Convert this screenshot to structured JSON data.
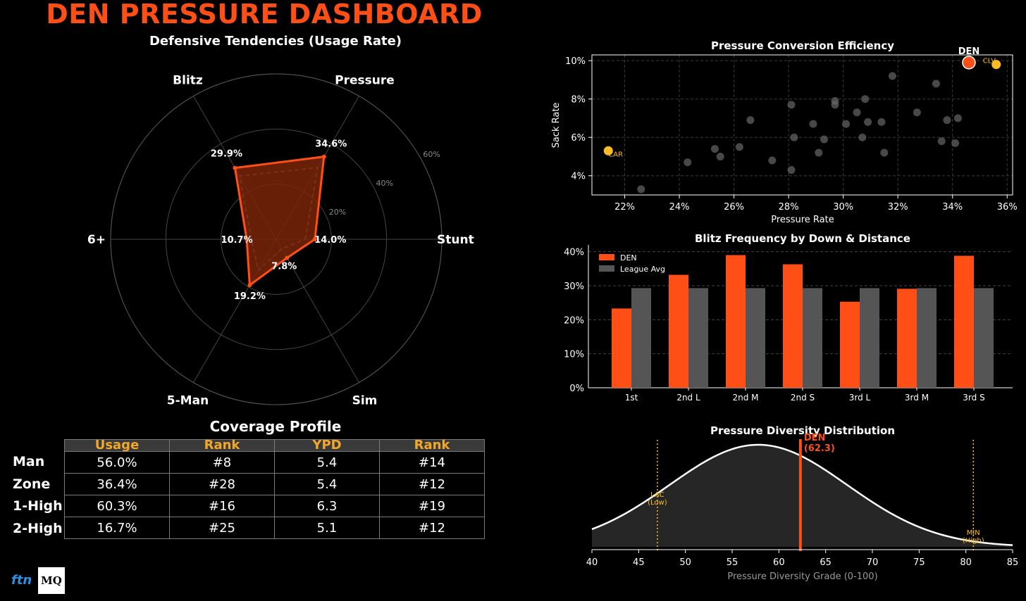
{
  "header": {
    "title": "DEN PRESSURE DASHBOARD"
  },
  "colors": {
    "den": "#ff4f16",
    "league": "#555555",
    "highlight": "#fbbc24",
    "background": "#000000"
  },
  "radar": {
    "title": "Defensive Tendencies (Usage Rate)",
    "axes": [
      "Stunt",
      "Pressure",
      "Blitz",
      "6+",
      "5-Man",
      "Sim"
    ],
    "den_values": [
      14.0,
      34.6,
      29.9,
      10.7,
      19.2,
      7.8
    ],
    "value_labels": [
      "14.0%",
      "34.6%",
      "29.9%",
      "10.7%",
      "19.2%",
      "7.8%"
    ],
    "league_values": [
      10.5,
      30.0,
      26.5,
      9.0,
      13.0,
      4.0
    ],
    "rings": [
      20,
      40,
      60
    ],
    "ring_labels": [
      "20%",
      "40%",
      "60%"
    ],
    "rmax": 60
  },
  "coverage": {
    "title": "Coverage Profile",
    "headers": [
      "Usage",
      "Rank",
      "YPD",
      "Rank"
    ],
    "rows": [
      {
        "label": "Man",
        "usage": "56.0%",
        "rank": "#8",
        "ypd": "5.4",
        "ypd_rank": "#14"
      },
      {
        "label": "Zone",
        "usage": "36.4%",
        "rank": "#28",
        "ypd": "5.4",
        "ypd_rank": "#12"
      },
      {
        "label": "1-High",
        "usage": "60.3%",
        "rank": "#16",
        "ypd": "6.3",
        "ypd_rank": "#19"
      },
      {
        "label": "2-High",
        "usage": "16.7%",
        "rank": "#25",
        "ypd": "5.1",
        "ypd_rank": "#12"
      }
    ]
  },
  "logos": {
    "ftn": "ftn",
    "mq": "MQ"
  },
  "chart_data": [
    {
      "type": "scatter",
      "title": "Pressure Conversion Efficiency",
      "xlabel": "Pressure Rate",
      "ylabel": "Sack Rate",
      "xlim": [
        20.8,
        36.2
      ],
      "ylim": [
        3.0,
        10.3
      ],
      "xticks": [
        22,
        24,
        26,
        28,
        30,
        32,
        34,
        36
      ],
      "xtick_labels": [
        "22%",
        "24%",
        "26%",
        "28%",
        "30%",
        "32%",
        "34%",
        "36%"
      ],
      "yticks": [
        4,
        6,
        8,
        10
      ],
      "ytick_labels": [
        "4%",
        "6%",
        "8%",
        "10%"
      ],
      "grid": true,
      "teams": [
        {
          "x": 22.6,
          "y": 3.3
        },
        {
          "x": 24.3,
          "y": 4.7
        },
        {
          "x": 25.3,
          "y": 5.4
        },
        {
          "x": 25.5,
          "y": 5.0
        },
        {
          "x": 26.2,
          "y": 5.5
        },
        {
          "x": 26.6,
          "y": 6.9
        },
        {
          "x": 27.4,
          "y": 4.8
        },
        {
          "x": 28.1,
          "y": 4.3
        },
        {
          "x": 28.1,
          "y": 7.7
        },
        {
          "x": 28.2,
          "y": 6.0
        },
        {
          "x": 28.9,
          "y": 6.7
        },
        {
          "x": 29.1,
          "y": 5.2
        },
        {
          "x": 29.3,
          "y": 5.9
        },
        {
          "x": 29.7,
          "y": 7.7
        },
        {
          "x": 29.7,
          "y": 7.9
        },
        {
          "x": 30.1,
          "y": 6.7
        },
        {
          "x": 30.5,
          "y": 7.3
        },
        {
          "x": 30.7,
          "y": 6.0
        },
        {
          "x": 30.8,
          "y": 8.0
        },
        {
          "x": 30.9,
          "y": 6.8
        },
        {
          "x": 31.4,
          "y": 6.8
        },
        {
          "x": 31.5,
          "y": 5.2
        },
        {
          "x": 31.8,
          "y": 9.2
        },
        {
          "x": 32.7,
          "y": 7.3
        },
        {
          "x": 33.4,
          "y": 8.8
        },
        {
          "x": 33.6,
          "y": 5.8
        },
        {
          "x": 33.8,
          "y": 6.9
        },
        {
          "x": 34.1,
          "y": 5.7
        },
        {
          "x": 34.2,
          "y": 7.0
        }
      ],
      "highlighted": [
        {
          "label": "DEN",
          "x": 34.6,
          "y": 9.9
        },
        {
          "label": "CLV",
          "x": 35.6,
          "y": 9.8
        },
        {
          "label": "CAR",
          "x": 21.4,
          "y": 5.3
        }
      ]
    },
    {
      "type": "bar",
      "title": "Blitz Frequency by Down & Distance",
      "categories": [
        "1st",
        "2nd L",
        "2nd M",
        "2nd S",
        "3rd L",
        "3rd M",
        "3rd S"
      ],
      "series": [
        {
          "name": "DEN",
          "values": [
            23.3,
            33.2,
            39.0,
            36.3,
            25.3,
            29.1,
            38.8
          ]
        },
        {
          "name": "League Avg",
          "values": [
            29.3,
            29.3,
            29.3,
            29.3,
            29.3,
            29.3,
            29.3
          ]
        }
      ],
      "ylim": [
        0,
        42
      ],
      "yticks": [
        0,
        10,
        20,
        30,
        40
      ],
      "ytick_labels": [
        "0%",
        "10%",
        "20%",
        "30%",
        "40%"
      ],
      "legend": "top-left",
      "grid": true
    },
    {
      "type": "area",
      "title": "Pressure Diversity Distribution",
      "xlabel": "Pressure Diversity Grade (0-100)",
      "xlim": [
        40,
        85
      ],
      "xticks": [
        40,
        45,
        50,
        55,
        60,
        65,
        70,
        75,
        80,
        85
      ],
      "mean": 57.8,
      "sd": 9.5,
      "den": {
        "value": 62.3,
        "label": "DEN",
        "value_label": "(62.3)"
      },
      "markers": [
        {
          "value": 47.0,
          "team": "LAC",
          "note": "(Low)"
        },
        {
          "value": 80.8,
          "team": "MIN",
          "note": "(High)"
        }
      ]
    }
  ]
}
